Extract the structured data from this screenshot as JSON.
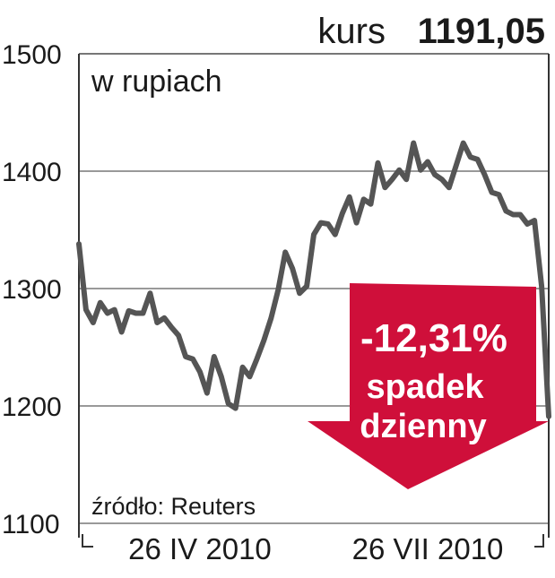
{
  "chart_data": {
    "type": "line",
    "title": "kurs",
    "title_value": "1191,05",
    "subtitle": "w rupiach",
    "source": "źródło: Reuters",
    "annotation": [
      "-12,31%",
      "spadek",
      "dzienny"
    ],
    "categories": [
      null,
      null,
      null,
      null,
      null,
      null,
      null,
      null,
      null,
      null,
      null,
      null,
      null,
      null,
      null,
      null,
      null,
      "26 IV 2010",
      null,
      null,
      null,
      null,
      null,
      null,
      null,
      null,
      null,
      null,
      null,
      null,
      null,
      null,
      null,
      null,
      null,
      null,
      null,
      null,
      null,
      null,
      null,
      null,
      null,
      null,
      null,
      null,
      null,
      null,
      null,
      "26 VII 2010",
      null,
      null,
      null,
      null,
      null,
      null,
      null,
      null,
      null,
      null,
      null,
      null,
      null,
      null,
      null,
      null,
      null
    ],
    "series": [
      {
        "name": "kurs",
        "color": "#555555",
        "values": [
          1338,
          1282,
          1271,
          1288,
          1279,
          1282,
          1263,
          1281,
          1279,
          1279,
          1296,
          1271,
          1275,
          1267,
          1260,
          1242,
          1240,
          1229,
          1211,
          1242,
          1225,
          1202,
          1198,
          1233,
          1225,
          1240,
          1256,
          1275,
          1299,
          1331,
          1317,
          1296,
          1302,
          1346,
          1356,
          1355,
          1346,
          1364,
          1378,
          1356,
          1376,
          1372,
          1407,
          1386,
          1393,
          1401,
          1393,
          1424,
          1401,
          1408,
          1397,
          1393,
          1386,
          1405,
          1424,
          1412,
          1410,
          1397,
          1382,
          1380,
          1366,
          1363,
          1363,
          1355,
          1358,
          1302,
          1191.05
        ]
      }
    ],
    "ylim": [
      1100,
      1500
    ],
    "yticks": [
      1100,
      1200,
      1300,
      1400,
      1500
    ],
    "grid": true
  }
}
